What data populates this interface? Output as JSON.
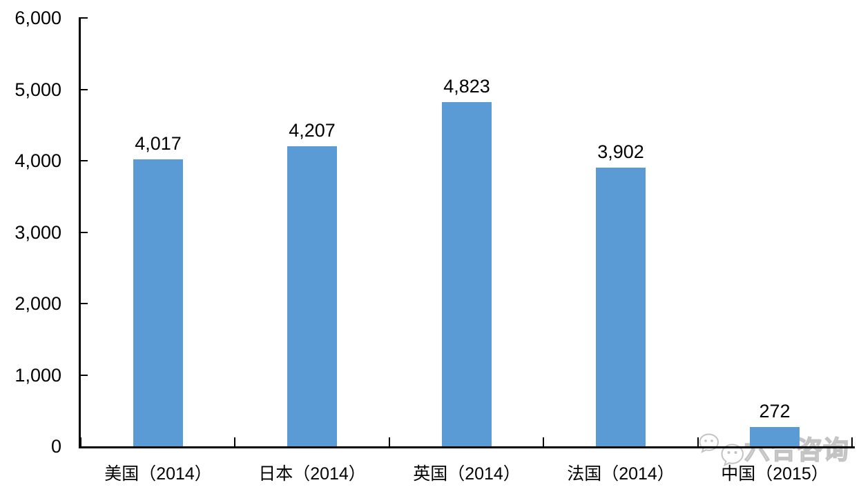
{
  "chart_data": {
    "type": "bar",
    "title": "",
    "xlabel": "",
    "ylabel": "",
    "categories": [
      "美国（2014）",
      "日本（2014）",
      "英国（2014）",
      "法国（2014）",
      "中国（2015）"
    ],
    "values": [
      4017,
      4207,
      4823,
      3902,
      272
    ],
    "value_labels": [
      "4,017",
      "4,207",
      "4,823",
      "3,902",
      "272"
    ],
    "ylim": [
      0,
      6000
    ],
    "ytick_interval": 1000,
    "yticks": [
      0,
      1000,
      2000,
      3000,
      4000,
      5000,
      6000
    ],
    "ytick_labels": [
      "0",
      "1,000",
      "2,000",
      "3,000",
      "4,000",
      "5,000",
      "6,000"
    ],
    "grid": false,
    "legend": false,
    "bar_color": "#5B9BD5",
    "axis_color": "#000000"
  },
  "watermark": {
    "text": "六合咨询",
    "icon": "wechat-chat-bubbles-icon",
    "color": "#c3c3c3"
  }
}
